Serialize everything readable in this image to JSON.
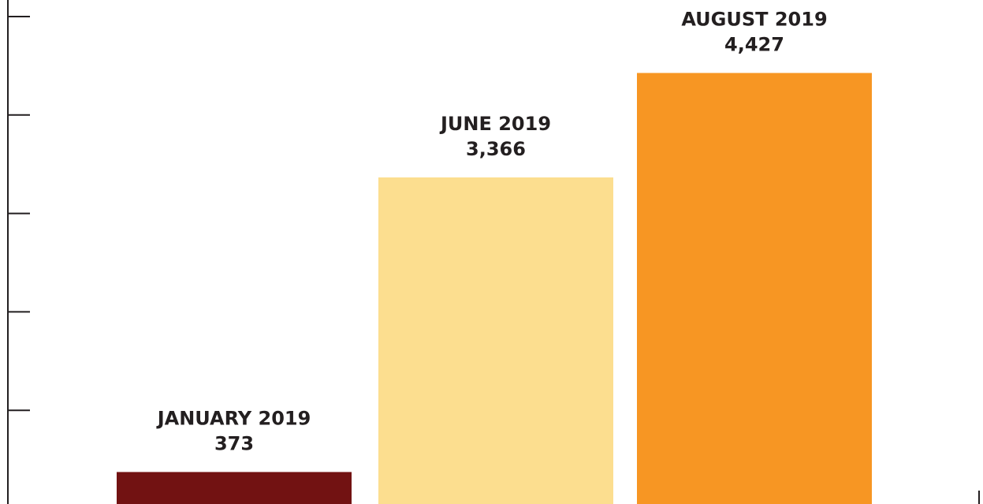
{
  "chart_data": {
    "type": "bar",
    "categories": [
      "JANUARY 2019",
      "JUNE 2019",
      "AUGUST 2019"
    ],
    "values": [
      373,
      3366,
      4427
    ],
    "value_labels": [
      "373",
      "3,366",
      "4,427"
    ],
    "colors": [
      "#721212",
      "#fcde8f",
      "#f79623"
    ],
    "ylim": [
      0,
      5000
    ],
    "grid": false,
    "legend": "none"
  }
}
